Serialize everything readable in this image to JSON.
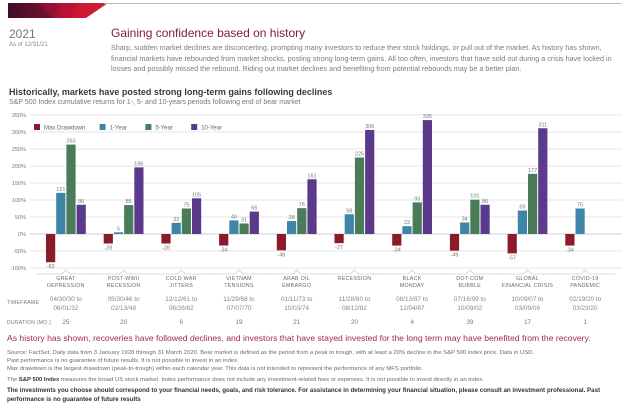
{
  "header": {
    "year": "2021",
    "as_of": "As of 12/31/21",
    "headline": "Gaining confidence based on history",
    "intro": "Sharp, sudden market declines are disconcerting, prompting many investors to reduce their stock holdings, or pull out of the market. As history has shown, financial markets have rebounded from market shocks, posting strong long-term gains. All too often, investors that have sold out during a crisis have locked in losses and possibly missed the rebound. Riding out market declines and benefiting from potential rebounds may be a better plan."
  },
  "colors": {
    "brand": "#7a1d3a",
    "banner_dark": "#4a0f2e",
    "banner_red": "#c8102e",
    "callout": "#a3284e"
  },
  "chart_data": {
    "type": "bar",
    "title": "Historically, markets have posted strong long-term gains following declines",
    "subtitle": "S&P 500 Index cumulative returns for 1-, 5- and 10-years periods following end of bear market",
    "xlabel": "",
    "ylabel": "",
    "ylim": [
      -100,
      350
    ],
    "yticks": [
      -100,
      -50,
      0,
      50,
      100,
      150,
      200,
      250,
      300,
      350
    ],
    "ytick_labels": [
      "-100%",
      "-50%",
      "0%",
      "50%",
      "100%",
      "150%",
      "200%",
      "250%",
      "300%",
      "350%"
    ],
    "grid": true,
    "legend_position": "top-left",
    "categories": [
      "GREAT DEPRESSION",
      "POST-WWII RECESSION",
      "COLD WAR JITTERS",
      "VIETNAM TENSIONS",
      "ARAB OIL EMBARGO",
      "RECESSION",
      "BLACK MONDAY",
      "DOT-COM BUBBLE",
      "GLOBAL FINANCIAL CRISIS",
      "COVID-19 PANDEMIC"
    ],
    "series": [
      {
        "name": "Max Drawdown",
        "color": "#8b1a2b",
        "values": [
          -83,
          -28,
          -28,
          -34,
          -48,
          -27,
          -34,
          -49,
          -57,
          -34
        ]
      },
      {
        "name": "1-Year",
        "color": "#3d86a8",
        "values": [
          121,
          5,
          33,
          40,
          38,
          58,
          23,
          34,
          69,
          75
        ]
      },
      {
        "name": "5-Year",
        "color": "#4a7c59",
        "values": [
          263,
          85,
          75,
          31,
          76,
          225,
          93,
          101,
          177,
          null
        ]
      },
      {
        "name": "10-Year",
        "color": "#5b3a8c",
        "values": [
          86,
          196,
          105,
          66,
          161,
          306,
          335,
          86,
          311,
          null
        ]
      }
    ]
  },
  "table": {
    "timeframe_label": "TIMEFRAME",
    "duration_label": "DURATION (MO.)",
    "periods": [
      {
        "name": "GREAT DEPRESSION",
        "line1": "GREAT",
        "line2": "DEPRESSION",
        "start": "04/30/30 to",
        "end": "06/01/32",
        "duration": "25"
      },
      {
        "name": "POST-WWII RECESSION",
        "line1": "POST-WWII",
        "line2": "RECESSION",
        "start": "05/30/46 to",
        "end": "02/13/48",
        "duration": "20"
      },
      {
        "name": "COLD WAR JITTERS",
        "line1": "COLD WAR",
        "line2": "JITTERS",
        "start": "12/12/61 to",
        "end": "06/26/62",
        "duration": "6"
      },
      {
        "name": "VIETNAM TENSIONS",
        "line1": "VIETNAM",
        "line2": "TENSIONS",
        "start": "11/29/68 to",
        "end": "07/07/70",
        "duration": "19"
      },
      {
        "name": "ARAB OIL EMBARGO",
        "line1": "ARAB OIL",
        "line2": "EMBARGO",
        "start": "01/11/73 to",
        "end": "10/03/74",
        "duration": "21"
      },
      {
        "name": "RECESSION",
        "line1": "RECESSION",
        "line2": "",
        "start": "11/28/80 to",
        "end": "08/12/82",
        "duration": "20"
      },
      {
        "name": "BLACK MONDAY",
        "line1": "BLACK",
        "line2": "MONDAY",
        "start": "08/13/87 to",
        "end": "12/04/87",
        "duration": "4"
      },
      {
        "name": "DOT-COM BUBBLE",
        "line1": "DOT-COM",
        "line2": "BUBBLE",
        "start": "07/16/99 to",
        "end": "10/09/02",
        "duration": "39"
      },
      {
        "name": "GLOBAL FINANCIAL CRISIS",
        "line1": "GLOBAL",
        "line2": "FINANCIAL CRISIS",
        "start": "10/09/07 to",
        "end": "03/09/09",
        "duration": "17"
      },
      {
        "name": "COVID-19 PANDEMIC",
        "line1": "COVID-19",
        "line2": "PANDEMIC",
        "start": "02/19/20 to",
        "end": "03/23/20",
        "duration": "1"
      }
    ]
  },
  "callout": "As history has shown, recoveries have followed declines, and investors that have stayed invested for the long term may have benefited from the recovery.",
  "footnotes": {
    "source": "Source: FactSet. Daily data from 3 January 1928 through 31 March 2020. Bear market is defined as the period from a peak to trough, with at least a 20% decline in the S&P 500 index price. Data in USD.",
    "past_perf": "Past performance is no guarantee of future results. It is not possible to invest in an index.",
    "max_drawdown": "Max drawdown is the largest drawdown (peak-to-trough) within each calendar year. This data is not intended to represent the performance of any MFS portfolio.",
    "index_bold": "S&P 500 Index",
    "index_prefix": "The ",
    "index_rest": " measures the broad US stock market. Index performance does not include any investment-related fees or expenses. It is not possible to invest directly in an index.",
    "disclaimer": "The investments you choose should correspond to your financial needs, goals, and risk tolerance. For assistance in determining your financial situation, please consult an investment professional. Past performance is no guarantee of future results"
  }
}
